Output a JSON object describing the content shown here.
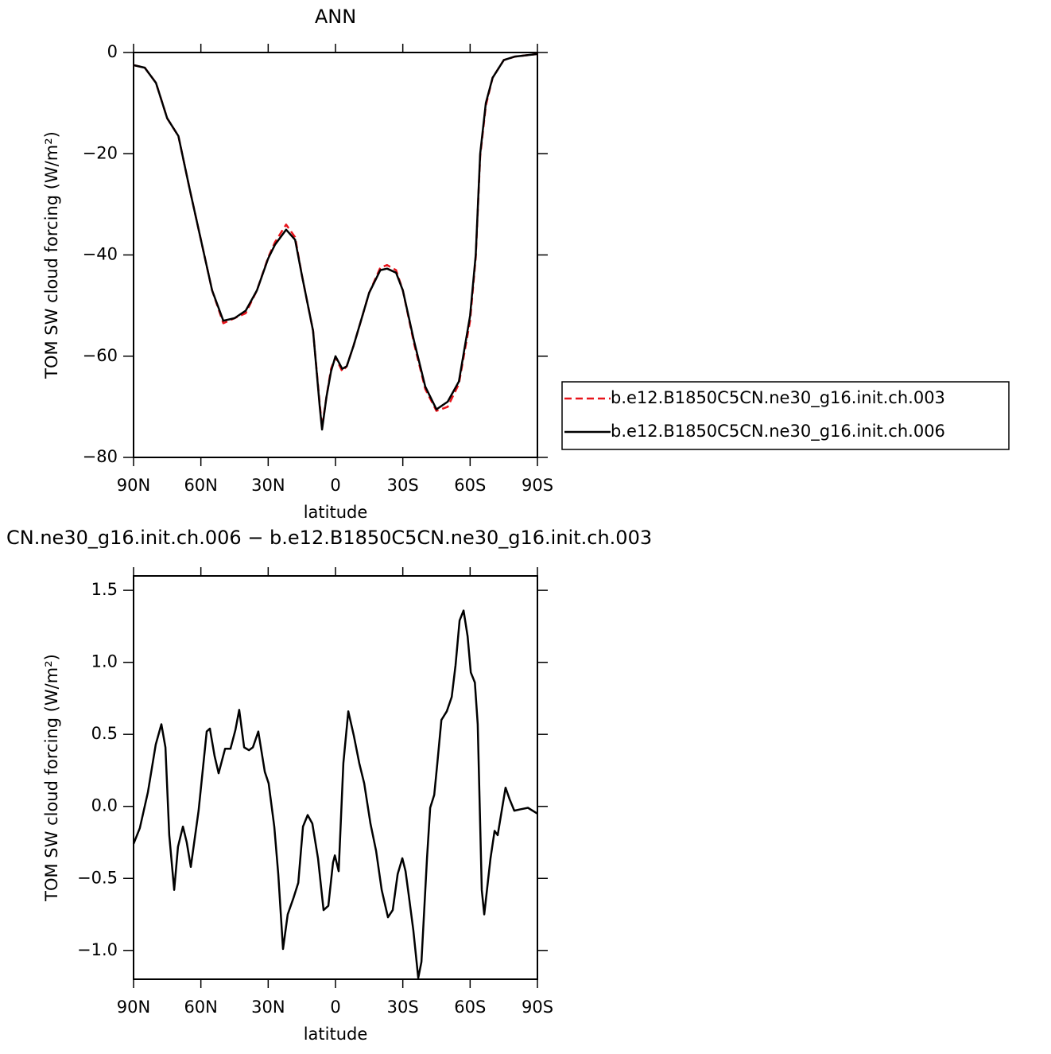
{
  "chart_data": [
    {
      "type": "line",
      "title": "ANN",
      "xlabel": "latitude",
      "ylabel": "TOM SW cloud forcing (W/m²)",
      "x": [
        90,
        85,
        80,
        75,
        70,
        65,
        60,
        55,
        50,
        45,
        40,
        35,
        30,
        27,
        22,
        18,
        15,
        10,
        7,
        6,
        4,
        2,
        0,
        -3,
        -5,
        -8,
        -12,
        -15,
        -20,
        -23,
        -27,
        -30,
        -35,
        -40,
        -45,
        -50,
        -55,
        -60,
        -62.5,
        -64.5,
        -67,
        -70,
        -75,
        -80,
        -90
      ],
      "series": [
        {
          "name": "b.e12.B1850C5CN.ne30_g16.init.ch.003",
          "color": "#e8141b",
          "dash": true,
          "values": [
            -2.5,
            -3,
            -6,
            -13,
            -16.5,
            -27,
            -37,
            -47,
            -53.5,
            -52.5,
            -51.5,
            -47,
            -40.5,
            -37.5,
            -34,
            -36.5,
            -44,
            -55,
            -69.5,
            -74,
            -68,
            -62.5,
            -60.2,
            -63,
            -62,
            -58,
            -52,
            -47.5,
            -42.5,
            -42,
            -43,
            -47,
            -57.5,
            -66.5,
            -70.8,
            -70,
            -65.5,
            -53,
            -40.5,
            -20.5,
            -10.5,
            -5,
            -1.5,
            -0.8,
            -0.3
          ]
        },
        {
          "name": "b.e12.B1850C5CN.ne30_g16.init.ch.006",
          "color": "#000000",
          "dash": false,
          "values": [
            -2.5,
            -3,
            -6,
            -13,
            -16.5,
            -27,
            -37,
            -47,
            -53,
            -52.5,
            -51,
            -47,
            -40.7,
            -38,
            -35,
            -37,
            -44,
            -55,
            -70,
            -74.5,
            -68,
            -63,
            -60,
            -62.5,
            -62,
            -58,
            -52,
            -47.5,
            -43,
            -42.7,
            -43.5,
            -47,
            -57,
            -66,
            -70.5,
            -69,
            -65,
            -52,
            -40,
            -20,
            -10,
            -5,
            -1.5,
            -0.8,
            -0.3
          ]
        }
      ],
      "xlim": [
        90,
        -90
      ],
      "ylim": [
        -80,
        0
      ],
      "xticks": [
        {
          "value": 90,
          "label": "90N"
        },
        {
          "value": 60,
          "label": "60N"
        },
        {
          "value": 30,
          "label": "30N"
        },
        0,
        {
          "value": -30,
          "label": "30S"
        },
        {
          "value": -60,
          "label": "60S"
        },
        {
          "value": -90,
          "label": "90S"
        }
      ],
      "yticks": [
        0,
        {
          "value": -20,
          "label": "−20"
        },
        {
          "value": -40,
          "label": "−40"
        },
        {
          "value": -60,
          "label": "−60"
        },
        {
          "value": -80,
          "label": "−80"
        }
      ],
      "legend": "right"
    },
    {
      "type": "line",
      "title": "CN.ne30_g16.init.ch.006 − b.e12.B1850C5CN.ne30_g16.init.ch.003",
      "xlabel": "latitude",
      "ylabel": "TOM SW cloud forcing (W/m²)",
      "x": [
        90,
        87.2,
        83.6,
        80.1,
        77.6,
        75.8,
        74.1,
        71.9,
        70.2,
        68,
        66.3,
        64.5,
        61,
        57.4,
        56,
        53.9,
        52.1,
        49.2,
        46.8,
        44.6,
        42.9,
        40.7,
        38.6,
        36.8,
        34.4,
        31.5,
        29.8,
        27.3,
        25.5,
        23.4,
        21.3,
        18.8,
        16.6,
        14.5,
        12.4,
        10.3,
        7.8,
        5.3,
        3.2,
        1.1,
        0.3,
        -1.4,
        -3.5,
        -5.7,
        -8.2,
        -10.6,
        -12.8,
        -15.6,
        -18.1,
        -20.6,
        -23.4,
        -25.5,
        -27.7,
        -29.8,
        -31.2,
        -32.6,
        -34.7,
        -36.9,
        -38.3,
        -40.8,
        -42.2,
        -44,
        -45.4,
        -47.2,
        -49.6,
        -51.8,
        -53.5,
        -55.3,
        -57.1,
        -58.9,
        -60.3,
        -62.1,
        -63.4,
        -65.2,
        -66.3,
        -69.1,
        -70.9,
        -72.3,
        -74.1,
        -75.8,
        -77.6,
        -79.7,
        -82.6,
        -85.8,
        -90
      ],
      "series": [
        {
          "color": "#000000",
          "dash": false,
          "values": [
            -0.26,
            -0.15,
            0.1,
            0.43,
            0.57,
            0.41,
            -0.2,
            -0.58,
            -0.28,
            -0.14,
            -0.25,
            -0.42,
            -0.03,
            0.52,
            0.54,
            0.35,
            0.23,
            0.4,
            0.4,
            0.53,
            0.67,
            0.41,
            0.39,
            0.41,
            0.52,
            0.24,
            0.16,
            -0.14,
            -0.47,
            -0.99,
            -0.75,
            -0.64,
            -0.53,
            -0.14,
            -0.06,
            -0.12,
            -0.36,
            -0.72,
            -0.69,
            -0.39,
            -0.34,
            -0.45,
            0.3,
            0.66,
            0.49,
            0.3,
            0.16,
            -0.12,
            -0.31,
            -0.58,
            -0.77,
            -0.72,
            -0.47,
            -0.36,
            -0.45,
            -0.61,
            -0.86,
            -1.19,
            -1.08,
            -0.36,
            -0.01,
            0.08,
            0.3,
            0.6,
            0.66,
            0.76,
            0.98,
            1.29,
            1.36,
            1.18,
            0.93,
            0.86,
            0.57,
            -0.58,
            -0.75,
            -0.36,
            -0.17,
            -0.2,
            -0.03,
            0.13,
            0.05,
            -0.03,
            -0.02,
            -0.01,
            -0.05
          ]
        }
      ],
      "xlim": [
        90,
        -90
      ],
      "ylim": [
        -1.2,
        1.6
      ],
      "xticks": [
        {
          "value": 90,
          "label": "90N"
        },
        {
          "value": 60,
          "label": "60N"
        },
        {
          "value": 30,
          "label": "30N"
        },
        0,
        {
          "value": -30,
          "label": "30S"
        },
        {
          "value": -60,
          "label": "60S"
        },
        {
          "value": -90,
          "label": "90S"
        }
      ],
      "yticks": [
        1.5,
        {
          "value": 1,
          "label": "1.0"
        },
        0.5,
        {
          "value": 0,
          "label": "0.0"
        },
        {
          "value": -0.5,
          "label": "−0.5"
        },
        {
          "value": -1,
          "label": "−1.0"
        }
      ]
    }
  ]
}
